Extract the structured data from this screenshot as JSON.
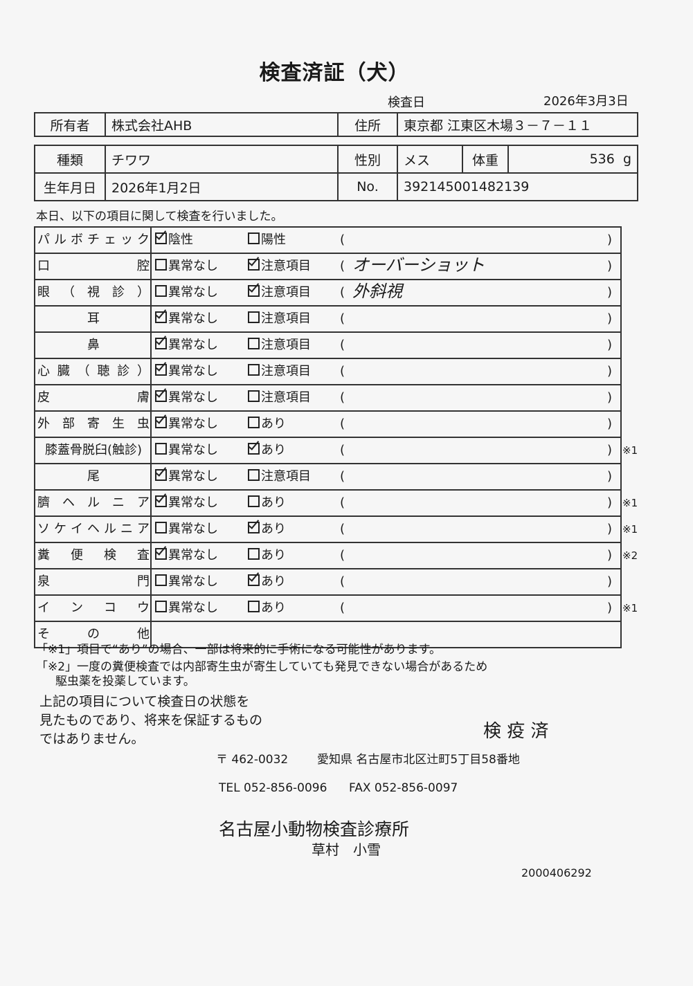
{
  "title": "検査済証（犬）",
  "exam_date_label": "検査日",
  "exam_date": "2026年3月3日",
  "owner": {
    "label": "所有者",
    "value": "株式会社AHB",
    "address_label": "住所",
    "address": "東京都 江東区木場３－７－１１"
  },
  "animal": {
    "breed_label": "種類",
    "breed": "チワワ",
    "sex_label": "性別",
    "sex": "メス",
    "weight_label": "体重",
    "weight": "536",
    "weight_unit": "g",
    "birth_label": "生年月日",
    "birth": "2026年1月2日",
    "no_label": "No.",
    "no": "392145001482139"
  },
  "intro": "本日、以下の項目に関して検査を行いました。",
  "items": [
    {
      "name": [
        "パ",
        "ル",
        "ボ",
        "チ",
        "ェ",
        "ッ",
        "ク"
      ],
      "opt1": "陰性",
      "opt1_checked": true,
      "opt2": "陽性",
      "opt2_checked": false,
      "note": "",
      "mark": ""
    },
    {
      "name": [
        "口",
        "腔"
      ],
      "opt1": "異常なし",
      "opt1_checked": false,
      "opt2": "注意項目",
      "opt2_checked": true,
      "note": "オーバーショット",
      "mark": ""
    },
    {
      "name": [
        "眼",
        "（",
        "視",
        "診",
        "）"
      ],
      "opt1": "異常なし",
      "opt1_checked": false,
      "opt2": "注意項目",
      "opt2_checked": true,
      "note": "外斜視",
      "mark": ""
    },
    {
      "name": [
        "耳"
      ],
      "opt1": "異常なし",
      "opt1_checked": true,
      "opt2": "注意項目",
      "opt2_checked": false,
      "note": "",
      "mark": ""
    },
    {
      "name": [
        "鼻"
      ],
      "opt1": "異常なし",
      "opt1_checked": true,
      "opt2": "注意項目",
      "opt2_checked": false,
      "note": "",
      "mark": ""
    },
    {
      "name": [
        "心",
        "臓",
        "（",
        "聴",
        "診",
        "）"
      ],
      "opt1": "異常なし",
      "opt1_checked": true,
      "opt2": "注意項目",
      "opt2_checked": false,
      "note": "",
      "mark": ""
    },
    {
      "name": [
        "皮",
        "膚"
      ],
      "opt1": "異常なし",
      "opt1_checked": true,
      "opt2": "注意項目",
      "opt2_checked": false,
      "note": "",
      "mark": ""
    },
    {
      "name": [
        "外",
        "部",
        "寄",
        "生",
        "虫"
      ],
      "opt1": "異常なし",
      "opt1_checked": true,
      "opt2": "あり",
      "opt2_checked": false,
      "note": "",
      "mark": ""
    },
    {
      "name": [
        "膝蓋骨脱臼(触診)"
      ],
      "opt1": "異常なし",
      "opt1_checked": false,
      "opt2": "あり",
      "opt2_checked": true,
      "note": "",
      "mark": "※1"
    },
    {
      "name": [
        "尾"
      ],
      "opt1": "異常なし",
      "opt1_checked": true,
      "opt2": "注意項目",
      "opt2_checked": false,
      "note": "",
      "mark": ""
    },
    {
      "name": [
        "臍",
        "ヘ",
        "ル",
        "ニ",
        "ア"
      ],
      "opt1": "異常なし",
      "opt1_checked": true,
      "opt2": "あり",
      "opt2_checked": false,
      "note": "",
      "mark": "※1"
    },
    {
      "name": [
        "ソ",
        "ケ",
        "イ",
        "ヘ",
        "ル",
        "ニ",
        "ア"
      ],
      "opt1": "異常なし",
      "opt1_checked": false,
      "opt2": "あり",
      "opt2_checked": true,
      "note": "",
      "mark": "※1"
    },
    {
      "name": [
        "糞",
        "便",
        "検",
        "査"
      ],
      "opt1": "異常なし",
      "opt1_checked": true,
      "opt2": "あり",
      "opt2_checked": false,
      "note": "",
      "mark": "※2"
    },
    {
      "name": [
        "泉",
        "門"
      ],
      "opt1": "異常なし",
      "opt1_checked": false,
      "opt2": "あり",
      "opt2_checked": true,
      "note": "",
      "mark": ""
    },
    {
      "name": [
        "イ",
        "ン",
        "コ",
        "ウ"
      ],
      "opt1": "異常なし",
      "opt1_checked": false,
      "opt2": "あり",
      "opt2_checked": false,
      "note": "",
      "mark": "※1"
    },
    {
      "name": [
        "そ",
        "の",
        "他"
      ],
      "opt1": null,
      "opt2": null,
      "note": "",
      "mark": ""
    }
  ],
  "footnotes": {
    "note1": "「※1」項目で“あり”の場合、一部は将来的に手術になる可能性があります。",
    "note2": "「※2」一度の糞便検査では内部寄生虫が寄生していても発見できない場合があるため",
    "note2_cont": "駆虫薬を投薬しています。"
  },
  "disclaimer": [
    "上記の項目について検査日の状態を",
    "見たものであり、将来を保証するもの",
    "ではありません。"
  ],
  "quarantine": "検 疫 済",
  "clinic": {
    "postal": "〒 462-0032",
    "address": "愛知県 名古屋市北区辻町5丁目58番地",
    "tel": "TEL 052-856-0096",
    "fax": "FAX 052-856-0097",
    "name": "名古屋小動物検査診療所",
    "person": "草村　小雪"
  },
  "doc_number": "2000406292"
}
